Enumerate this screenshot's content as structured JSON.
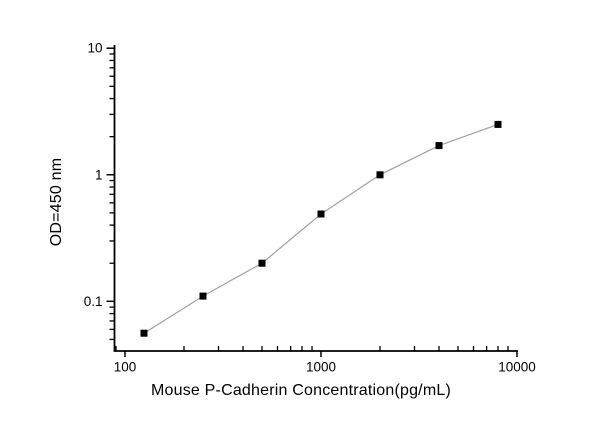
{
  "figure": {
    "background": "#ffffff"
  },
  "chart_data": {
    "type": "line",
    "title": "",
    "xlabel": "Mouse P-Cadherin Concentration(pg/mL)",
    "ylabel": "OD=450 nm",
    "xscale": "log",
    "yscale": "log",
    "xlim": [
      88.4,
      10120
    ],
    "ylim": [
      0.0405,
      10.6
    ],
    "grid": false,
    "legend": false,
    "series": [
      {
        "name": "standard-curve",
        "x": [
          125,
          250,
          500,
          1000,
          2000,
          4000,
          8000
        ],
        "y": [
          0.056,
          0.11,
          0.2,
          0.49,
          1.0,
          1.7,
          2.5
        ]
      }
    ],
    "x_major_ticks": [
      {
        "value": 100,
        "label": "100"
      },
      {
        "value": 1000,
        "label": "1000"
      },
      {
        "value": 10000,
        "label": "10000"
      }
    ],
    "y_major_ticks": [
      {
        "value": 10,
        "label": "10"
      },
      {
        "value": 1,
        "label": "1"
      },
      {
        "value": 0.1,
        "label": "0.1"
      }
    ],
    "marker": "filled-square",
    "marker_size": 7,
    "marker_color": "#000000",
    "line_color": "#a0a0a0",
    "axis_color": "#000000",
    "text_color": "#000000"
  }
}
